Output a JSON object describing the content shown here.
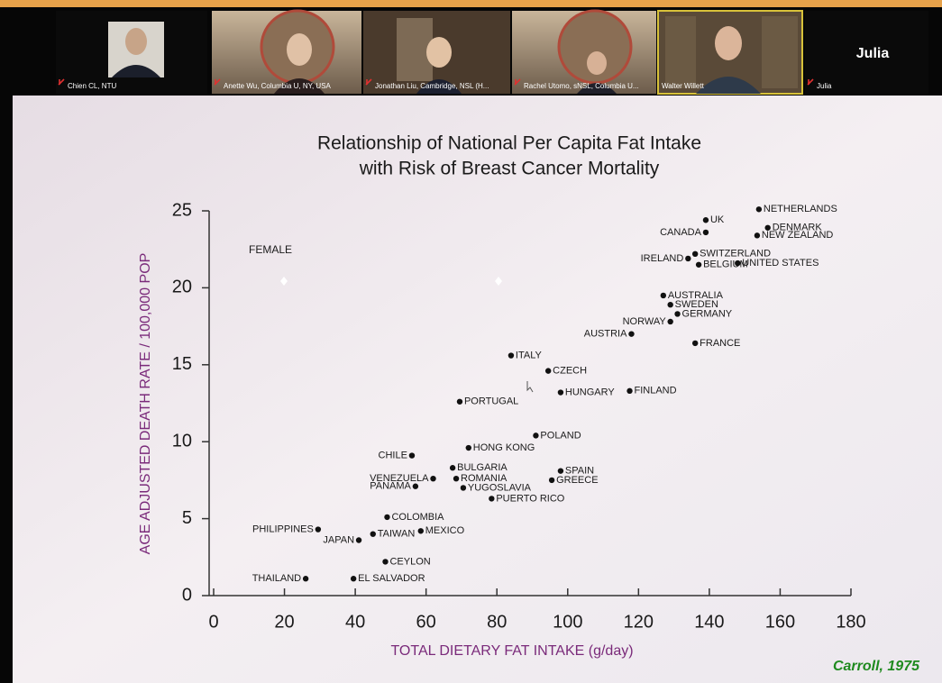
{
  "participants": [
    {
      "name": "Chien CL, NTU"
    },
    {
      "name": "Anette Wu, Columbia U, NY, USA"
    },
    {
      "name": "Jonathan Liu, Cambridge, NSL (H..."
    },
    {
      "name": "Rachel Utomo, sNSL, Columbia U..."
    },
    {
      "name": "Walter Willett"
    },
    {
      "name": "Julia"
    }
  ],
  "chart_data": {
    "type": "scatter",
    "title": [
      "Relationship of National Per Capita Fat Intake",
      "with Risk of Breast Cancer Mortality"
    ],
    "legend_text": "FEMALE",
    "x_label": "TOTAL DIETARY FAT INTAKE (g/day)",
    "y_label": "AGE ADJUSTED DEATH RATE / 100,000 POP",
    "source": "Carroll, 1975",
    "color": "#111111",
    "xlim": [
      0,
      180
    ],
    "xticks": [
      0,
      20,
      40,
      60,
      80,
      100,
      120,
      140,
      160,
      180
    ],
    "ylim": [
      0,
      25
    ],
    "yticks": [
      0,
      5,
      10,
      15,
      20,
      25
    ],
    "labels": [
      "NETHERLANDS",
      "UK",
      "CANADA",
      "DENMARK",
      "NEW ZEALAND",
      "SWITZERLAND",
      "IRELAND",
      "BELGIUM",
      "UNITED STATES",
      "AUSTRALIA",
      "SWEDEN",
      "GERMANY",
      "NORWAY",
      "AUSTRIA",
      "FRANCE",
      "ITALY",
      "CZECH",
      "HUNGARY",
      "FINLAND",
      "PORTUGAL",
      "POLAND",
      "HONG KONG",
      "CHILE",
      "BULGARIA",
      "VENEZUELA",
      "ROMANIA",
      "YUGOSLAVIA",
      "PANAMA",
      "SPAIN",
      "GREECE",
      "PUERTO RICO",
      "COLOMBIA",
      "PHILIPPINES",
      "MEXICO",
      "TAIWAN",
      "JAPAN",
      "CEYLON",
      "THAILAND",
      "EL SALVADOR"
    ],
    "x": [
      154,
      139,
      139,
      156.5,
      153.5,
      136,
      134,
      137,
      148,
      127,
      129,
      131,
      129,
      118,
      136,
      84,
      94.5,
      98,
      117.5,
      69.5,
      91,
      72,
      56,
      67.5,
      62,
      68.5,
      70.5,
      57,
      98,
      95.5,
      78.5,
      49,
      29.5,
      58.5,
      45,
      41,
      48.5,
      26,
      39.5
    ],
    "y": [
      25.1,
      24.4,
      23.6,
      23.9,
      23.4,
      22.2,
      21.9,
      21.5,
      21.6,
      19.5,
      18.9,
      18.3,
      17.8,
      17.0,
      16.4,
      15.6,
      14.6,
      13.2,
      13.3,
      12.6,
      10.4,
      9.6,
      9.1,
      8.3,
      7.6,
      7.6,
      7.0,
      7.1,
      8.1,
      7.5,
      6.3,
      5.1,
      4.3,
      4.2,
      4.0,
      3.6,
      2.2,
      1.1,
      1.1
    ]
  }
}
